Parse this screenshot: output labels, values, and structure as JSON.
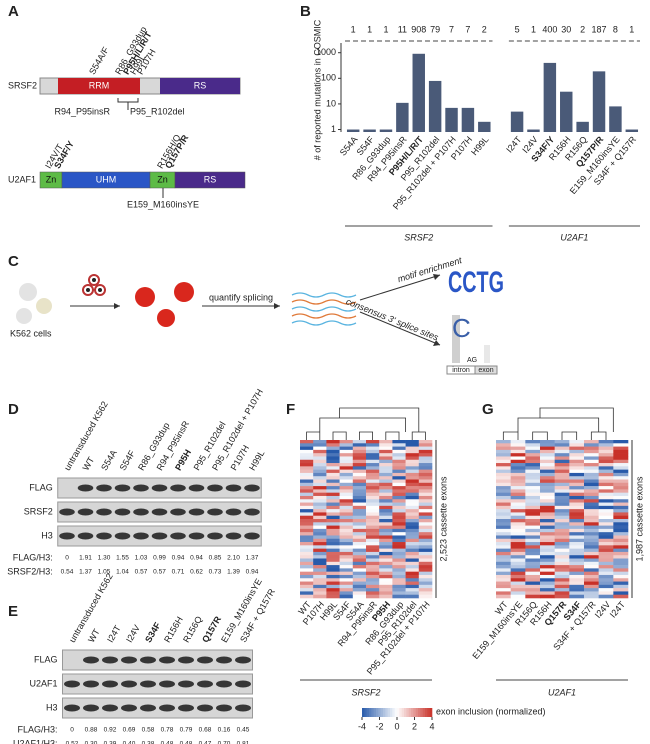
{
  "panels": {
    "a": {
      "label": "A",
      "srsf2": {
        "name": "SRSF2",
        "domains": [
          "RRM",
          "RS"
        ],
        "above": [
          "S54A/F",
          "R86_G93dup",
          "P95H/L/R/T",
          "H99L",
          "P107H"
        ],
        "above_bold": [
          2
        ],
        "below": [
          "R94_P95insR",
          "P95_R102del"
        ]
      },
      "u2af1": {
        "name": "U2AF1",
        "domains": [
          "Zn",
          "UHM",
          "Zn",
          "RS"
        ],
        "above": [
          "I24V/T",
          "S34F/Y",
          "R156H/Q",
          "Q157P/R"
        ],
        "above_bold": [
          1,
          3
        ],
        "below": [
          "E159_M160insYE"
        ]
      }
    },
    "b": {
      "label": "B",
      "type": "bar",
      "y_label": "# of reported mutations in COSMIC",
      "log_scale": true,
      "ylim": [
        0.8,
        2000
      ],
      "yticks": [
        1,
        10,
        100,
        1000
      ],
      "color": "#4a5a78",
      "groups": [
        {
          "name": "SRSF2",
          "categories": [
            "S54A",
            "S54F",
            "R86_G93dup",
            "R94_P95insR",
            "P95H/L/R/T",
            "P95_R102del",
            "P95_R102del + P107H",
            "P107H",
            "H99L"
          ],
          "values": [
            1,
            1,
            1,
            11,
            908,
            79,
            7,
            7,
            2
          ],
          "bold": [
            4
          ]
        },
        {
          "name": "U2AF1",
          "categories": [
            "I24T",
            "I24V",
            "S34F/Y",
            "R156H",
            "R156Q",
            "Q157P/R",
            "E159_M160insYE",
            "S34F + Q157R"
          ],
          "values": [
            5,
            1,
            400,
            30,
            2,
            187,
            8,
            1
          ],
          "bold": [
            2,
            5
          ]
        }
      ]
    },
    "c": {
      "label": "C",
      "cells": "K562 cells",
      "step": "quantify splicing",
      "motif": "motif enrichment",
      "consensus": "consensus 3' splice sites",
      "logo": "CCTG",
      "ag": "AG",
      "intron": "intron",
      "exon": "exon"
    },
    "d": {
      "label": "D",
      "lanes": [
        "untransduced K562",
        "WT",
        "S54A",
        "S54F",
        "R86_G93dup",
        "R94_P95insR",
        "P95H",
        "P95_R102del",
        "P95_R102del + P107H",
        "P107H",
        "H99L"
      ],
      "lanes_bold": [
        6
      ],
      "rows": [
        "FLAG",
        "SRSF2",
        "H3"
      ],
      "ratios": [
        {
          "name": "FLAG/H3:",
          "values": [
            "0",
            "1.91",
            "1.30",
            "1.55",
            "1.03",
            "0.99",
            "0.94",
            "0.94",
            "0.85",
            "2.10",
            "1.37"
          ]
        },
        {
          "name": "SRSF2/H3:",
          "values": [
            "0.54",
            "1.37",
            "1.05",
            "1.04",
            "0.57",
            "0.57",
            "0.71",
            "0.62",
            "0.73",
            "1.39",
            "0.94"
          ]
        }
      ]
    },
    "e": {
      "label": "E",
      "lanes": [
        "untransduced K562",
        "WT",
        "I24T",
        "I24V",
        "S34F",
        "R156H",
        "R156Q",
        "Q157R",
        "E159_M160insYE",
        "S34F + Q157R"
      ],
      "lanes_bold": [
        4,
        7
      ],
      "rows": [
        "FLAG",
        "U2AF1",
        "H3"
      ],
      "ratios": [
        {
          "name": "FLAG/H3:",
          "values": [
            "0",
            "0.88",
            "0.92",
            "0.69",
            "0.58",
            "0.78",
            "0.79",
            "0.68",
            "0.16",
            "0.45"
          ]
        },
        {
          "name": "U2AF1/H3:",
          "values": [
            "0.52",
            "0.30",
            "0.39",
            "0.40",
            "0.38",
            "0.48",
            "0.48",
            "0.47",
            "0.70",
            "0.81"
          ]
        }
      ]
    },
    "f": {
      "label": "F",
      "exons": "2,523 cassette exons",
      "group": "SRSF2",
      "columns": [
        "WT",
        "P107H",
        "H99L",
        "S54F",
        "S54A",
        "R94_P95insR",
        "P95H",
        "R86_G93dup",
        "P95_R102del",
        "P95_R102del + P107H"
      ],
      "bold": [
        6
      ]
    },
    "g": {
      "label": "G",
      "exons": "1,987 cassette exons",
      "group": "U2AF1",
      "columns": [
        "WT",
        "E159_M160insYE",
        "R156Q",
        "R156H",
        "Q157R",
        "S34F",
        "S34F + Q157R",
        "I24V",
        "I24T"
      ],
      "bold": [
        4,
        5
      ]
    },
    "colorbar": {
      "ticks": [
        -4,
        -2,
        0,
        2,
        4
      ],
      "label": "exon inclusion (normalized)"
    }
  }
}
